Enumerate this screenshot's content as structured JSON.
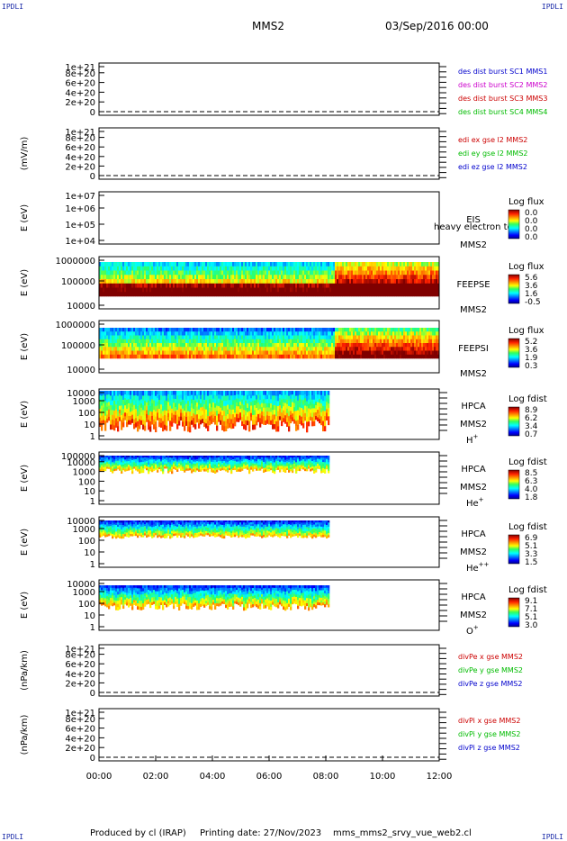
{
  "header": {
    "corner_label": "IPDLI",
    "spacecraft": "MMS2",
    "date": "03/Sep/2016 00:00"
  },
  "footer": {
    "produced": "Produced by cl (IRAP)",
    "printing": "Printing date: 27/Nov/2023",
    "script": "mms_mms2_srvy_vue_web2.cl"
  },
  "time_axis": [
    "00:00",
    "02:00",
    "04:00",
    "06:00",
    "08:00",
    "10:00",
    "12:00"
  ],
  "panels": [
    {
      "key": "des",
      "ylabel": "",
      "ticks": [
        "1e+21",
        "8e+20",
        "6e+20",
        "4e+20",
        "2e+20",
        "0"
      ],
      "legend": [
        {
          "text": "des dist burst SC1 MMS1",
          "color": "#0000cc"
        },
        {
          "text": "des dist burst SC2 MMS2",
          "color": "#cc00cc"
        },
        {
          "text": "des dist burst SC3 MMS3",
          "color": "#cc0000"
        },
        {
          "text": "des dist burst SC4 MMS4",
          "color": "#00bb00"
        }
      ]
    },
    {
      "key": "edi",
      "ylabel": "(mV/m)",
      "ticks": [
        "1e+21",
        "8e+20",
        "6e+20",
        "4e+20",
        "2e+20",
        "0"
      ],
      "legend": [
        {
          "text": "edi ex gse l2 MMS2",
          "color": "#cc0000"
        },
        {
          "text": "edi ey gse l2 MMS2",
          "color": "#00bb00"
        },
        {
          "text": "edi ez gse l2 MMS2",
          "color": "#0000cc"
        }
      ]
    },
    {
      "key": "eis",
      "ylabel": "E (eV)",
      "ticks": [
        "1e+07",
        "1e+06",
        "1e+05",
        "1e+04"
      ],
      "name": "EIS",
      "overlay": "heavy electron to",
      "sc": "MMS2",
      "scale_title": "Log flux",
      "scale_values": [
        "0.0",
        "0.0",
        "0.0",
        "0.0"
      ]
    },
    {
      "key": "feepse",
      "ylabel": "E (eV)",
      "ticks": [
        "1000000",
        "100000",
        "10000"
      ],
      "name": "FEEPSE",
      "sc": "MMS2",
      "scale_title": "Log flux",
      "scale_values": [
        "5.6",
        "3.6",
        "1.6",
        "-0.5"
      ]
    },
    {
      "key": "feepsi",
      "ylabel": "E (eV)",
      "ticks": [
        "1000000",
        "100000",
        "10000"
      ],
      "name": "FEEPSI",
      "sc": "MMS2",
      "scale_title": "Log flux",
      "scale_values": [
        "5.2",
        "3.6",
        "1.9",
        "0.3"
      ]
    },
    {
      "key": "hpca_h",
      "ylabel": "E (eV)",
      "ticks": [
        "10000",
        "1000",
        "100",
        "10",
        "1"
      ],
      "name": "HPCA",
      "sc": "MMS2",
      "species": "H",
      "species_sup": "+",
      "scale_title": "Log fdist",
      "scale_values": [
        "8.9",
        "6.2",
        "3.4",
        "0.7"
      ]
    },
    {
      "key": "hpca_he",
      "ylabel": "E (eV)",
      "ticks": [
        "100000",
        "10000",
        "1000",
        "100",
        "10",
        "1"
      ],
      "name": "HPCA",
      "sc": "MMS2",
      "species": "He",
      "species_sup": "+",
      "scale_title": "Log fdist",
      "scale_values": [
        "8.5",
        "6.3",
        "4.0",
        "1.8"
      ]
    },
    {
      "key": "hpca_hepp",
      "ylabel": "E (eV)",
      "ticks": [
        "10000",
        "1000",
        "100",
        "10",
        "1"
      ],
      "name": "HPCA",
      "sc": "MMS2",
      "species": "He",
      "species_sup": "++",
      "scale_title": "Log fdist",
      "scale_values": [
        "6.9",
        "5.1",
        "3.3",
        "1.5"
      ]
    },
    {
      "key": "hpca_o",
      "ylabel": "E (eV)",
      "ticks": [
        "10000",
        "1000",
        "100",
        "10",
        "1"
      ],
      "name": "HPCA",
      "sc": "MMS2",
      "species": "O",
      "species_sup": "+",
      "scale_title": "Log fdist",
      "scale_values": [
        "9.1",
        "7.1",
        "5.1",
        "3.0"
      ]
    },
    {
      "key": "divpe",
      "ylabel": "(nPa/km)",
      "ticks": [
        "1e+21",
        "8e+20",
        "6e+20",
        "4e+20",
        "2e+20",
        "0"
      ],
      "legend": [
        {
          "text": "divPe x gse MMS2",
          "color": "#cc0000"
        },
        {
          "text": "divPe y gse MMS2",
          "color": "#00bb00"
        },
        {
          "text": "divPe z gse MMS2",
          "color": "#0000cc"
        }
      ]
    },
    {
      "key": "divpi",
      "ylabel": "(nPa/km)",
      "ticks": [
        "1e+21",
        "8e+20",
        "6e+20",
        "4e+20",
        "2e+20",
        "0"
      ],
      "legend": [
        {
          "text": "divPi x gse MMS2",
          "color": "#cc0000"
        },
        {
          "text": "divPi y gse MMS2",
          "color": "#00bb00"
        },
        {
          "text": "divPi z gse MMS2",
          "color": "#0000cc"
        }
      ]
    }
  ],
  "chart_data": {
    "type": "heatmap",
    "title": "MMS2 03/Sep/2016 00:00",
    "x_range": [
      "00:00",
      "12:00"
    ],
    "x_ticks": [
      "00:00",
      "02:00",
      "04:00",
      "06:00",
      "08:00",
      "10:00",
      "12:00"
    ],
    "hpca_data_end": "08:10",
    "feeps_transition": "08:10"
  }
}
